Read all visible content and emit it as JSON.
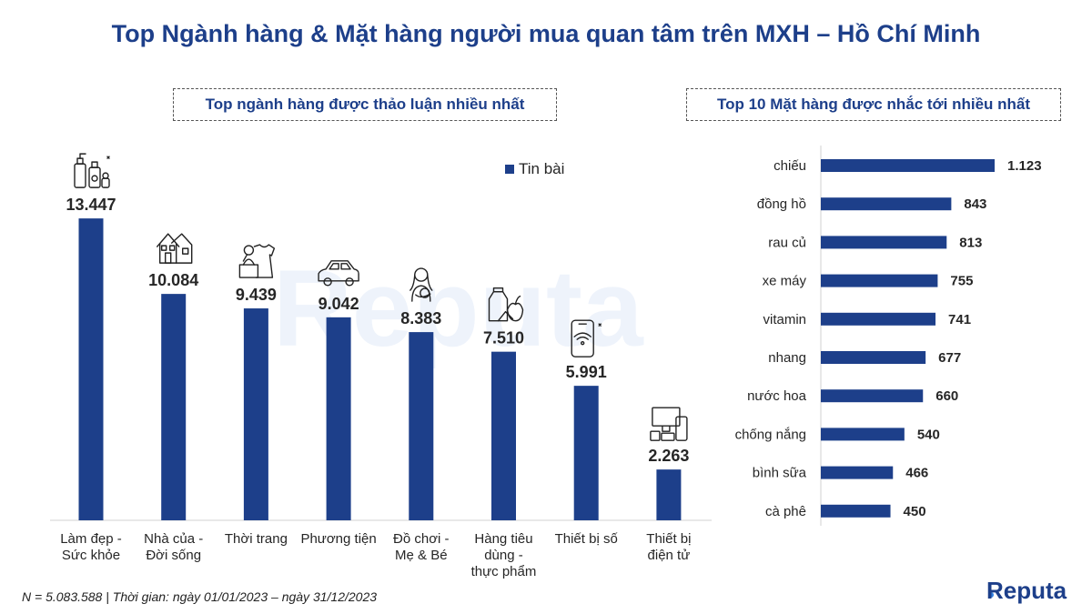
{
  "title": "Top Ngành hàng & Mặt hàng người mua quan tâm trên MXH – Hồ Chí Minh",
  "left_subtitle": "Top ngành hàng được thảo luận nhiều nhất",
  "right_subtitle": "Top 10 Mặt hàng được nhắc tới nhiều nhất",
  "footnote": "N = 5.083.588 | Thời gian: ngày 01/01/2023 – ngày 31/12/2023",
  "brand": "Reputa",
  "watermark": "Reputa",
  "colors": {
    "title": "#1d3f8a",
    "bar": "#1d3f8a"
  },
  "chart_data": [
    {
      "type": "bar",
      "legend": [
        "Tin bài"
      ],
      "legend_position": "top-right",
      "categories": [
        [
          "Làm đẹp -",
          "Sức khỏe"
        ],
        [
          "Nhà của -",
          "Đời sống"
        ],
        [
          "Thời trang"
        ],
        [
          "Phương tiện"
        ],
        [
          "Đồ chơi -",
          "Mẹ & Bé"
        ],
        [
          "Hàng tiêu",
          "dùng -",
          "thực phẩm"
        ],
        [
          "Thiết bị số"
        ],
        [
          "Thiết bị",
          "điện tử"
        ]
      ],
      "icons": [
        "cosmetics-icon",
        "house-icon",
        "fashion-icon",
        "car-icon",
        "mother-baby-icon",
        "groceries-icon",
        "smartphone-wifi-icon",
        "electronics-icon"
      ],
      "series": [
        {
          "name": "Tin bài",
          "values": [
            13447,
            10084,
            9439,
            9042,
            8383,
            7510,
            5991,
            2263
          ],
          "labels": [
            "13.447",
            "10.084",
            "9.439",
            "9.042",
            "8.383",
            "7.510",
            "5.991",
            "2.263"
          ]
        }
      ],
      "ylim": [
        0,
        14000
      ],
      "grid": false
    },
    {
      "type": "bar",
      "orientation": "horizontal",
      "categories": [
        "chiếu",
        "đồng hồ",
        "rau củ",
        "xe máy",
        "vitamin",
        "nhang",
        "nước hoa",
        "chống nắng",
        "bình sữa",
        "cà phê"
      ],
      "values": [
        1123,
        843,
        813,
        755,
        741,
        677,
        660,
        540,
        466,
        450
      ],
      "labels": [
        "1.123",
        "843",
        "813",
        "755",
        "741",
        "677",
        "660",
        "540",
        "466",
        "450"
      ],
      "xlim": [
        0,
        1123
      ],
      "grid": false
    }
  ]
}
